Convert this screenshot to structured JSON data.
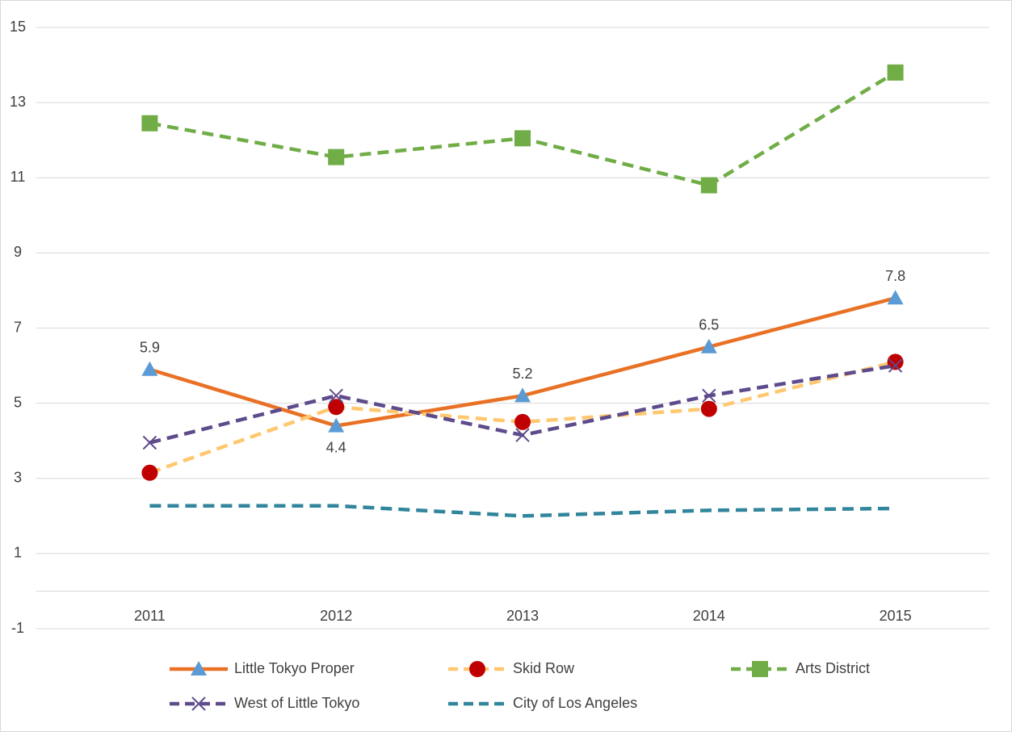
{
  "chart_data": {
    "type": "line",
    "categories": [
      "2011",
      "2012",
      "2013",
      "2014",
      "2015"
    ],
    "series": [
      {
        "name": "Little Tokyo Proper",
        "color": "#e97125",
        "marker_color": "#5b9bd5",
        "marker": "triangle",
        "dash": false,
        "data_labels": true,
        "values": [
          5.9,
          4.4,
          5.2,
          6.5,
          7.8
        ]
      },
      {
        "name": "Skid Row",
        "color": "#ffc870",
        "marker_color": "#c00000",
        "marker": "circle",
        "dash": true,
        "values": [
          3.15,
          4.9,
          4.5,
          4.85,
          6.1
        ]
      },
      {
        "name": "Arts District",
        "color": "#70ad47",
        "marker_color": "#70ad47",
        "marker": "square",
        "dash": true,
        "values": [
          12.45,
          11.55,
          12.05,
          10.8,
          13.8
        ]
      },
      {
        "name": "West of Little Tokyo",
        "color": "#5e4b8b",
        "marker_color": "#5e4b8b",
        "marker": "x",
        "dash": true,
        "values": [
          3.95,
          5.2,
          4.15,
          5.2,
          6.0
        ]
      },
      {
        "name": "City of Los Angeles",
        "color": "#31859c",
        "marker": "none",
        "dash": true,
        "values": [
          2.27,
          2.27,
          2.0,
          2.15,
          2.2
        ]
      }
    ],
    "ylim": [
      -1,
      15
    ],
    "yticks": [
      -1,
      1,
      3,
      5,
      7,
      9,
      11,
      13,
      15
    ],
    "grid": true,
    "legend": "bottom"
  }
}
